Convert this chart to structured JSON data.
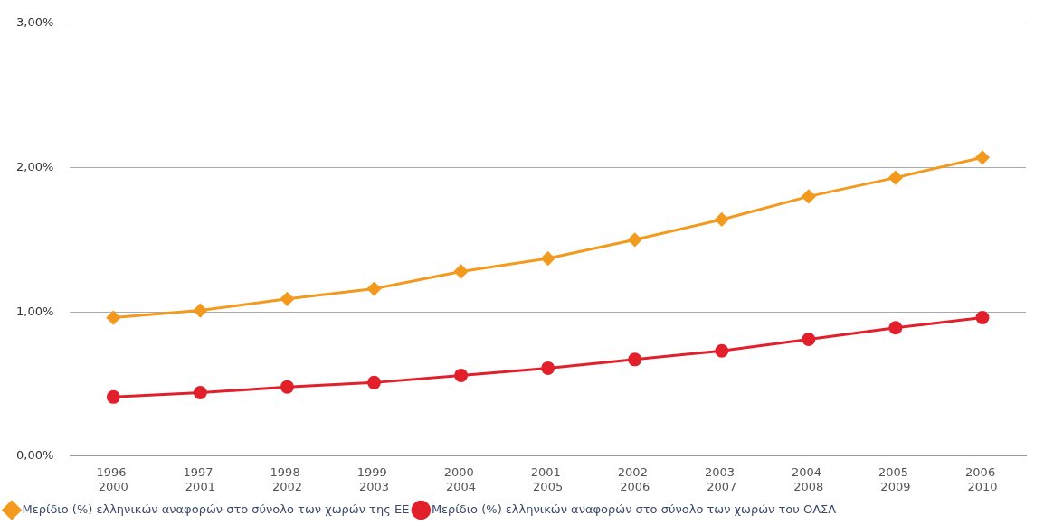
{
  "chart_data": {
    "type": "line",
    "categories": [
      "1996-2000",
      "1997-2001",
      "1998-2002",
      "1999-2003",
      "2000-2004",
      "2001-2005",
      "2002-2006",
      "2003-2007",
      "2004-2008",
      "2005-2009",
      "2006-2010"
    ],
    "series": [
      {
        "name": "Μερίδιο (%) ελληνικών αναφορών στο σύνολο των χωρών της ΕΕ",
        "color": "#f39a1e",
        "marker": "diamond",
        "values": [
          0.96,
          1.01,
          1.09,
          1.16,
          1.28,
          1.37,
          1.5,
          1.64,
          1.8,
          1.93,
          2.07
        ]
      },
      {
        "name": "Μερίδιο (%) ελληνικών αναφορών στο σύνολο των χωρών του ΟΑΣΑ",
        "color": "#e2202b",
        "marker": "circle",
        "values": [
          0.41,
          0.44,
          0.48,
          0.51,
          0.56,
          0.61,
          0.67,
          0.73,
          0.81,
          0.89,
          0.96
        ]
      }
    ],
    "ylim": [
      0,
      3
    ],
    "yticks": [
      {
        "value": 0,
        "label": "0,00%"
      },
      {
        "value": 1,
        "label": "1,00%"
      },
      {
        "value": 2,
        "label": "2,00%"
      },
      {
        "value": 3,
        "label": "3,00%"
      }
    ],
    "grid": "y",
    "legend": "bottom",
    "line_style": "solid"
  }
}
